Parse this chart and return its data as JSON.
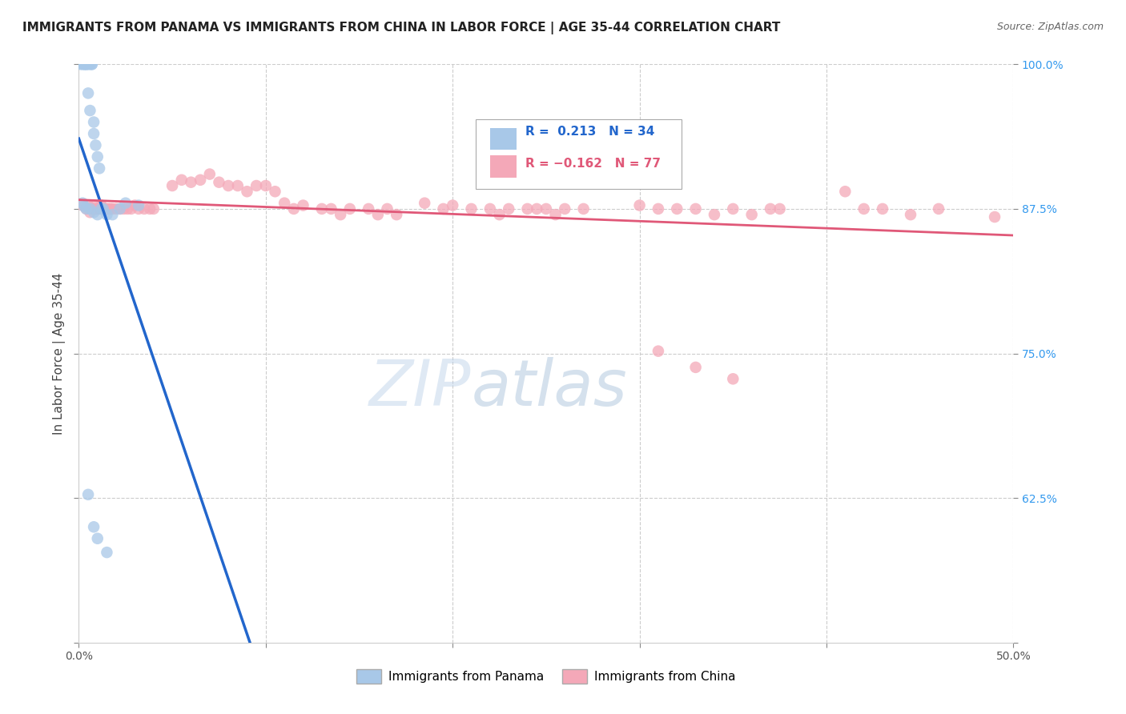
{
  "title": "IMMIGRANTS FROM PANAMA VS IMMIGRANTS FROM CHINA IN LABOR FORCE | AGE 35-44 CORRELATION CHART",
  "source": "Source: ZipAtlas.com",
  "ylabel": "In Labor Force | Age 35-44",
  "xlim": [
    0.0,
    0.5
  ],
  "ylim": [
    0.5,
    1.0
  ],
  "panama_color": "#a8c8e8",
  "china_color": "#f4a8b8",
  "panama_line_color": "#2266cc",
  "china_line_color": "#e05878",
  "panama_R": 0.213,
  "panama_N": 34,
  "china_R": -0.162,
  "china_N": 77,
  "watermark_zip": "ZIP",
  "watermark_atlas": "atlas",
  "background_color": "#ffffff"
}
